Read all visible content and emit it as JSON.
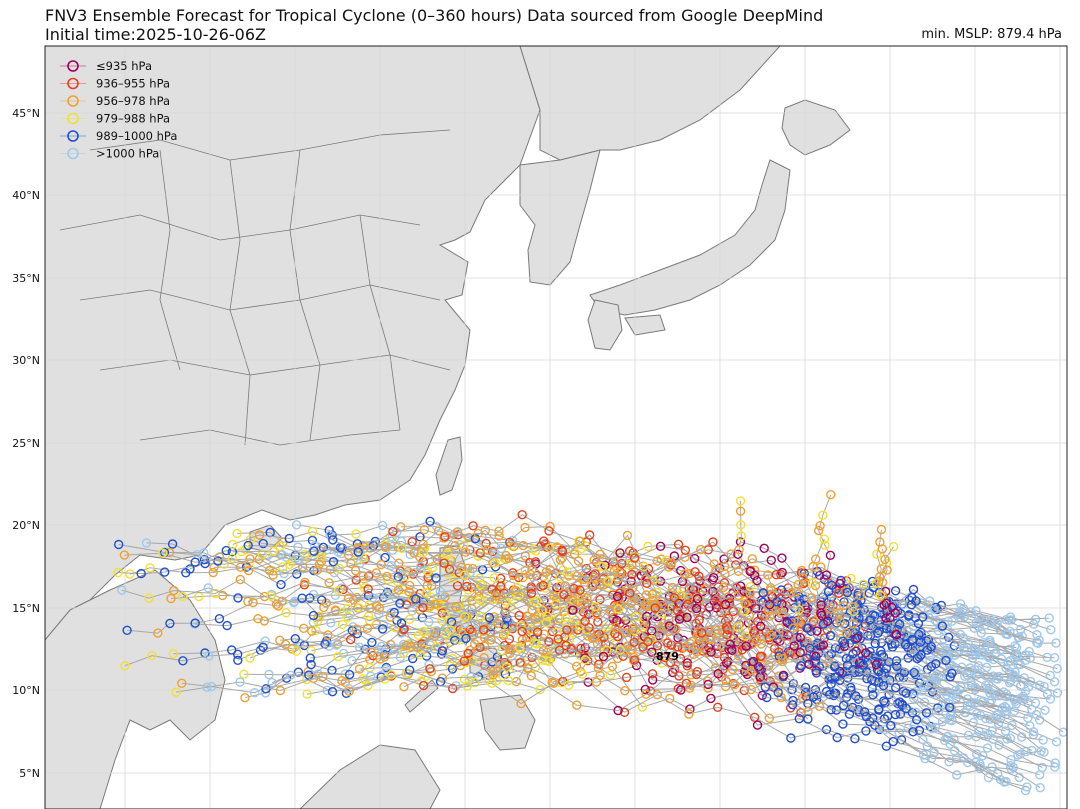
{
  "title": "FNV3 Ensemble Forecast for Tropical Cyclone (0–360 hours) Data sourced from Google DeepMind",
  "subtitle": "Initial time:2025-10-26-06Z",
  "min_mslp_label": "min. MSLP: 879.4 hPa",
  "peak_marker_label": "879",
  "lat_labels": [
    "45°N",
    "40°N",
    "35°N",
    "30°N",
    "25°N",
    "20°N",
    "15°N",
    "10°N",
    "5°N"
  ],
  "legend": [
    {
      "label": "≤935 hPa",
      "color": "#a0005a"
    },
    {
      "label": "936–955 hPa",
      "color": "#e8401c"
    },
    {
      "label": "956–978 hPa",
      "color": "#f0a030"
    },
    {
      "label": "979–988 hPa",
      "color": "#f2e033"
    },
    {
      "label": "989–1000 hPa",
      "color": "#1f4fd0"
    },
    {
      "label": ">1000 hPa",
      "color": "#9fc8ec"
    }
  ],
  "colors": {
    "land": "#e0e0e0",
    "sea": "#ffffff",
    "border": "#7a7a7a",
    "grid": "#d8d8d8",
    "track_line": "#a8a8a8"
  }
}
